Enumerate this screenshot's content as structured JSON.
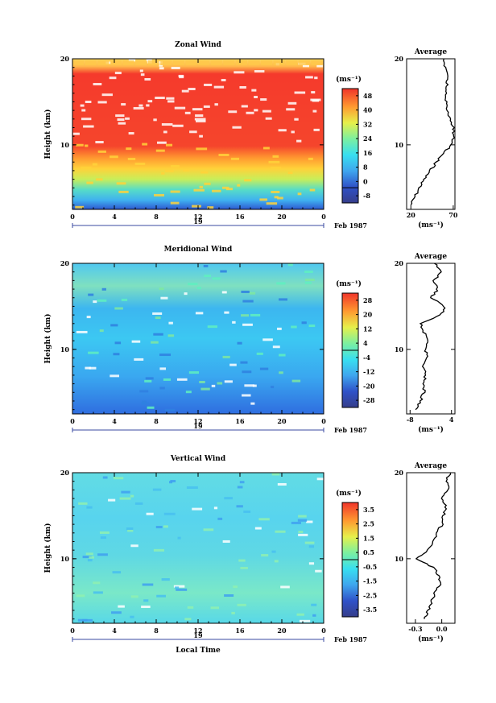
{
  "figure": {
    "date_label": "Feb 1987",
    "day_label": "19",
    "average_title": "Average",
    "units": "(ms⁻¹)",
    "ylabel": "Height (km)",
    "xlabel": "Local Time"
  },
  "chart_data": [
    {
      "type": "heatmap",
      "title": "Zonal Wind",
      "xlabel": "",
      "ylabel": "Height (km)",
      "xlim": [
        0,
        24
      ],
      "ylim": [
        2.5,
        20
      ],
      "x_ticks": [
        "0",
        "4",
        "8",
        "12",
        "16",
        "20",
        "0"
      ],
      "y_ticks": [
        "20",
        "10"
      ],
      "colorbar_label": "(ms⁻¹)",
      "colorbar_ticks": [
        "48",
        "40",
        "32",
        "24",
        "16",
        "8",
        "0",
        "-8"
      ],
      "colorbar_range": [
        -8,
        52
      ],
      "profile_title": "Average",
      "profile_xlabel": "(ms⁻¹)",
      "profile_xticks": [
        "20",
        "70"
      ],
      "profile_xlim": [
        15,
        72
      ],
      "profile": {
        "height": [
          3,
          4,
          5,
          6,
          7,
          8,
          9,
          10,
          11,
          12,
          13,
          14,
          15,
          16,
          17,
          18,
          19,
          20
        ],
        "value": [
          20,
          25,
          30,
          36,
          43,
          50,
          58,
          68,
          71,
          70,
          66,
          64,
          61,
          61,
          63,
          62,
          61,
          59
        ]
      }
    },
    {
      "type": "heatmap",
      "title": "Meridional Wind",
      "xlabel": "",
      "ylabel": "Height (km)",
      "xlim": [
        0,
        24
      ],
      "ylim": [
        2.5,
        20
      ],
      "x_ticks": [
        "0",
        "4",
        "8",
        "12",
        "16",
        "20",
        "0"
      ],
      "y_ticks": [
        "20",
        "10"
      ],
      "colorbar_label": "(ms⁻¹)",
      "colorbar_ticks": [
        "28",
        "20",
        "12",
        "4",
        "-4",
        "-12",
        "-20",
        "-28"
      ],
      "colorbar_range": [
        -30,
        30
      ],
      "profile_title": "Average",
      "profile_xlabel": "(ms⁻¹)",
      "profile_xticks": [
        "-8",
        "4"
      ],
      "profile_xlim": [
        -9,
        5
      ],
      "profile": {
        "height": [
          3,
          4,
          5,
          6,
          7,
          8,
          9,
          10,
          11,
          12,
          13,
          14,
          15,
          16,
          17,
          18,
          19,
          20
        ],
        "value": [
          -6,
          -5,
          -4,
          -4,
          -3.5,
          -4,
          -3,
          -3.5,
          -3,
          -4,
          -5,
          1,
          2,
          -2,
          0,
          -1,
          1,
          -1
        ]
      }
    },
    {
      "type": "heatmap",
      "title": "Vertical Wind",
      "xlabel": "Local Time",
      "ylabel": "Height (km)",
      "xlim": [
        0,
        24
      ],
      "ylim": [
        2.5,
        20
      ],
      "x_ticks": [
        "0",
        "4",
        "8",
        "12",
        "16",
        "20",
        "0"
      ],
      "y_ticks": [
        "20",
        "10"
      ],
      "colorbar_label": "(ms⁻¹)",
      "colorbar_ticks": [
        "3.5",
        "2.5",
        "1.5",
        "0.5",
        "-0.5",
        "-1.5",
        "-2.5",
        "-3.5"
      ],
      "colorbar_range": [
        -4,
        4
      ],
      "profile_title": "Average",
      "profile_xlabel": "(ms⁻¹)",
      "profile_xticks": [
        "-0.3",
        "0.0"
      ],
      "profile_xlim": [
        -0.4,
        0.15
      ],
      "profile": {
        "height": [
          3,
          4,
          5,
          6,
          7,
          8,
          9,
          10,
          11,
          12,
          13,
          14,
          15,
          16,
          17,
          18,
          19,
          20
        ],
        "value": [
          -0.2,
          -0.15,
          -0.12,
          -0.08,
          -0.02,
          -0.03,
          -0.1,
          -0.3,
          -0.15,
          -0.1,
          -0.05,
          0.0,
          0.02,
          0.05,
          0.0,
          0.08,
          0.05,
          0.1
        ]
      }
    }
  ]
}
